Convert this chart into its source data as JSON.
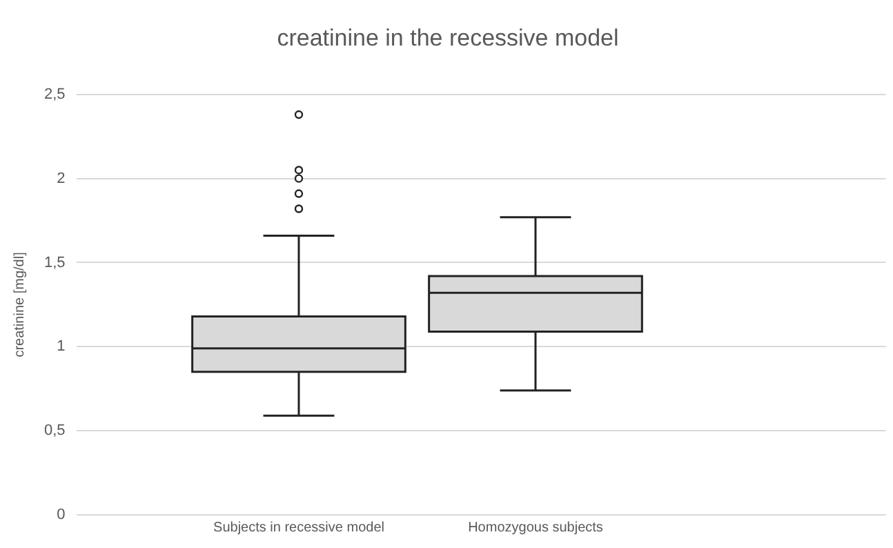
{
  "chart_data": {
    "type": "box",
    "title": "creatinine in the recessive model",
    "ylabel": "creatinine [mg/dl]",
    "categories": [
      "Subjects in recessive model",
      "Homozygous subjects"
    ],
    "boxes": [
      {
        "low": 0.59,
        "q1": 0.85,
        "median": 0.99,
        "q3": 1.18,
        "high": 1.66,
        "outliers": [
          1.82,
          1.91,
          2.0,
          2.05,
          2.38
        ]
      },
      {
        "low": 0.74,
        "q1": 1.09,
        "median": 1.32,
        "q3": 1.42,
        "high": 1.77
      }
    ],
    "color": "#d9d9d9",
    "ylim": [
      0,
      2.5
    ],
    "yticks": [
      0,
      {
        "value": 0.5,
        "label": "0,5"
      },
      1,
      {
        "value": 1.5,
        "label": "1,5"
      },
      2,
      {
        "value": 2.5,
        "label": "2,5"
      }
    ],
    "grid": "y",
    "legend": false
  }
}
